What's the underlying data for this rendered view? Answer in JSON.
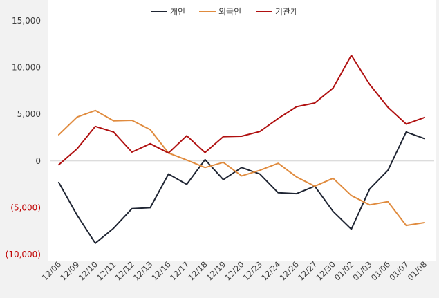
{
  "chart_data": {
    "type": "line",
    "categories": [
      "12/06",
      "12/09",
      "12/10",
      "12/11",
      "12/12",
      "12/13",
      "12/16",
      "12/17",
      "12/18",
      "12/19",
      "12/20",
      "12/23",
      "12/24",
      "12/26",
      "12/27",
      "12/30",
      "01/02",
      "01/03",
      "01/06",
      "01/07",
      "01/08"
    ],
    "y_tick_labels": [
      "15,000",
      "10,000",
      "5,000",
      "0",
      "(5,000)",
      "(10,000)"
    ],
    "y_tick_values": [
      15000,
      10000,
      5000,
      0,
      -5000,
      -10000
    ],
    "ylim": [
      -10000,
      15000
    ],
    "grid": false,
    "zero_line": true,
    "legend_position": "top-center",
    "negative_tick_color": "#c00000",
    "series": [
      {
        "name": "개인",
        "color": "#1f2533",
        "values": [
          -2300,
          -5800,
          -8800,
          -7200,
          -5100,
          -5000,
          -1400,
          -2500,
          150,
          -2000,
          -700,
          -1400,
          -3400,
          -3500,
          -2700,
          -5400,
          -7300,
          -3000,
          -1000,
          3100,
          2400
        ]
      },
      {
        "name": "외국인",
        "color": "#e08b3e",
        "values": [
          2800,
          4700,
          5400,
          4300,
          4350,
          3350,
          850,
          100,
          -700,
          -150,
          -1600,
          -1000,
          -250,
          -1700,
          -2700,
          -1850,
          -3700,
          -4700,
          -4350,
          -6900,
          -6600
        ]
      },
      {
        "name": "기관계",
        "color": "#b01010",
        "values": [
          -400,
          1300,
          3700,
          3100,
          950,
          1850,
          850,
          2700,
          900,
          2600,
          2650,
          3150,
          4550,
          5800,
          6200,
          7800,
          11300,
          8200,
          5750,
          3950,
          4650
        ]
      }
    ]
  }
}
